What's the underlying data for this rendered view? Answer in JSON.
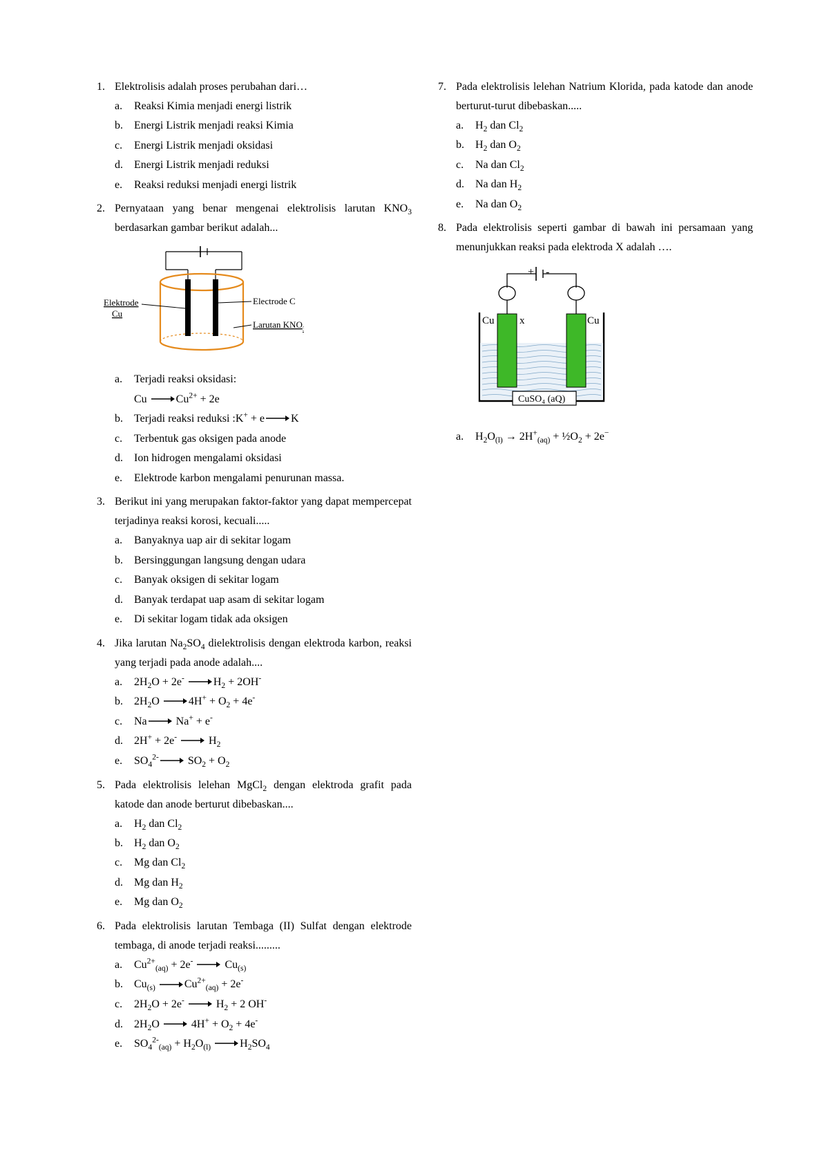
{
  "arrow_svg": "<svg width=\"34\" height=\"10\" viewBox=\"0 0 34 10\"><line x1=\"0\" y1=\"5\" x2=\"28\" y2=\"5\" stroke=\"#000\" stroke-width=\"1.4\"/><polygon points=\"28,1 34,5 28,9\" fill=\"#000\"/></svg>",
  "short_arrow_svg": "<svg width=\"24\" height=\"10\" viewBox=\"0 0 24 10\"><line x1=\"0\" y1=\"5\" x2=\"18\" y2=\"5\" stroke=\"#000\" stroke-width=\"1.4\"/><polygon points=\"18,1 24,5 18,9\" fill=\"#000\"/></svg>",
  "questions": [
    {
      "num": "1.",
      "stem": "Elektrolisis adalah proses perubahan dari…",
      "opts": [
        {
          "l": "a.",
          "t": "Reaksi Kimia menjadi energi listrik"
        },
        {
          "l": "b.",
          "t": "Energi Listrik menjadi reaksi Kimia"
        },
        {
          "l": "c.",
          "t": "Energi Listrik menjadi oksidasi"
        },
        {
          "l": "d.",
          "t": "Energi Listrik menjadi reduksi"
        },
        {
          "l": "e.",
          "t": "Reaksi reduksi menjadi energi listrik"
        }
      ]
    },
    {
      "num": "2.",
      "stem": "Pernyataan yang benar mengenai elektrolisis larutan KNO<sub>3</sub> berdasarkan gambar berikut adalah...",
      "has_figure": "fig1",
      "opts": [
        {
          "l": "a.",
          "html": "Terjadi reaksi oksidasi:<br>Cu {{arrow}}Cu<sup>2+</sup> + 2e"
        },
        {
          "l": "b.",
          "html": "Terjadi reaksi reduksi :K<sup>+</sup> + e{{arrow}}K"
        },
        {
          "l": "c.",
          "t": "Terbentuk gas oksigen pada anode"
        },
        {
          "l": "d.",
          "t": "Ion hidrogen mengalami oksidasi"
        },
        {
          "l": "e.",
          "t": "Elektrode karbon mengalami penurunan massa."
        }
      ]
    },
    {
      "num": "3.",
      "stem": "Berikut ini yang merupakan faktor-faktor yang dapat mempercepat terjadinya reaksi korosi, kecuali.....",
      "opts": [
        {
          "l": "a.",
          "t": "Banyaknya uap air di sekitar logam"
        },
        {
          "l": "b.",
          "t": "Bersinggungan langsung dengan udara"
        },
        {
          "l": "c.",
          "t": "Banyak oksigen di sekitar logam"
        },
        {
          "l": "d.",
          "t": "Banyak terdapat uap asam di sekitar logam"
        },
        {
          "l": "e.",
          "t": "Di sekitar logam tidak ada oksigen"
        }
      ]
    },
    {
      "num": "4.",
      "stem": "Jika larutan Na<sub>2</sub>SO<sub>4</sub> dielektrolisis dengan elektroda karbon, reaksi yang terjadi pada anode adalah....",
      "allow_break": true,
      "opts": [
        {
          "l": "a.",
          "html": "2H<sub>2</sub>O + 2e<sup>-</sup> {{arrow}}H<sub>2</sub> + 2OH<sup>-</sup>"
        },
        {
          "l": "b.",
          "html": "2H<sub>2</sub>O {{arrow}}4H<sup>+</sup> + O<sub>2</sub> + 4e<sup>-</sup>"
        },
        {
          "l": "c.",
          "html": "Na{{arrow}} Na<sup>+</sup> + e<sup>-</sup>"
        },
        {
          "l": "d.",
          "html": "2H<sup>+</sup> + 2e<sup>-</sup>  {{arrow}}  H<sub>2</sub>"
        },
        {
          "l": "e.",
          "html": "SO<sub>4</sub><sup>2-</sup>{{arrow}} SO<sub>2</sub> + O<sub>2</sub>"
        }
      ]
    },
    {
      "num": "5.",
      "stem": "Pada elektrolisis lelehan MgCl<sub>2</sub> dengan elektroda grafit pada katode dan anode berturut dibebaskan....",
      "opts": [
        {
          "l": "a.",
          "html": "H<sub>2</sub> dan Cl<sub>2</sub>"
        },
        {
          "l": "b.",
          "html": "H<sub>2</sub> dan O<sub>2</sub>"
        },
        {
          "l": "c.",
          "html": "Mg dan Cl<sub>2</sub>"
        },
        {
          "l": "d.",
          "html": "Mg dan H<sub>2</sub>"
        },
        {
          "l": "e.",
          "html": "Mg dan O<sub>2</sub>"
        }
      ]
    },
    {
      "num": "6.",
      "stem": "Pada elektrolisis larutan Tembaga (II) Sulfat dengan elektrode tembaga, di anode terjadi reaksi.........",
      "opts": [
        {
          "l": "a.",
          "html": "Cu<sup>2+</sup><sub>(aq)</sub> + 2e<sup>-</sup> {{arrow}} Cu<sub>(s)</sub>"
        },
        {
          "l": "b.",
          "html": "Cu<sub>(s)</sub> {{arrow}}Cu<sup>2+</sup><sub>(aq)</sub> + 2e<sup>-</sup>"
        },
        {
          "l": "c.",
          "html": "2H<sub>2</sub>O + 2e<sup>-</sup> {{arrow}} H<sub>2</sub> + 2 OH<sup>-</sup>"
        },
        {
          "l": "d.",
          "html": "2H<sub>2</sub>O {{arrow}} 4H<sup>+</sup> + O<sub>2</sub> + 4e<sup>-</sup>"
        },
        {
          "l": "e.",
          "html": "SO<sub>4</sub><sup>2-</sup><sub>(aq)</sub> + H<sub>2</sub>O<sub>(l)</sub> {{arrow}}H<sub>2</sub>SO<sub>4</sub>"
        }
      ]
    },
    {
      "num": "7.",
      "stem": "Pada elektrolisis lelehan Natrium Klorida, pada katode dan anode berturut-turut dibebaskan.....",
      "opts": [
        {
          "l": "a.",
          "html": "H<sub>2</sub> dan Cl<sub>2</sub>"
        },
        {
          "l": "b.",
          "html": "H<sub>2</sub> dan O<sub>2</sub>"
        },
        {
          "l": "c.",
          "html": "Na dan Cl<sub>2</sub>"
        },
        {
          "l": "d.",
          "html": "Na dan H<sub>2</sub>"
        },
        {
          "l": "e.",
          "html": "Na dan O<sub>2</sub>"
        }
      ]
    },
    {
      "num": "8.",
      "stem": "Pada elektrolisis seperti gambar di bawah ini persamaan yang menunjukkan reaksi pada elektroda X adalah ….",
      "has_figure": "fig2",
      "opts": [
        {
          "l": "a.",
          "html": "H<sub>2</sub>O<sub>(l)</sub> → 2H<sup>+</sup><sub>(aq)</sub> + ½O<sub>2</sub> + 2e<sup>−</sup>"
        }
      ]
    }
  ],
  "fig1": {
    "electrode_left": "Elektrode",
    "cu": "Cu",
    "electrode_right": "Electrode C",
    "solution": "Larutan KNO",
    "colors": {
      "beaker": "#e58a1c",
      "electrode": "#000000",
      "line": "#000000"
    }
  },
  "fig2": {
    "plus": "+",
    "minus": "-",
    "cu_left": "Cu",
    "cu_right": "Cu",
    "x": "x",
    "label": "CuSO₄ (aQ)",
    "colors": {
      "electrode": "#3eb828",
      "solution_stroke": "#7fa7c8",
      "border": "#000000",
      "solution_fill": "#eaf1f8"
    }
  }
}
